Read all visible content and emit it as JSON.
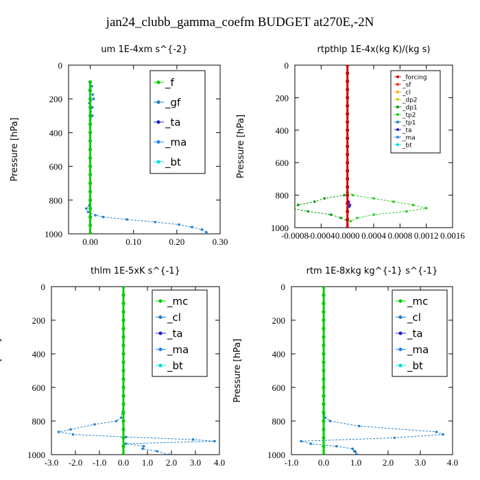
{
  "suptitle": "jan24_clubb_gamma_coefm  BUDGET at270E,-2N",
  "chart_data": [
    {
      "type": "line",
      "title": "um   1E-4xm s^{-2}",
      "ylabel": "Pressure [hPa]",
      "xlim": [
        -0.05,
        0.3
      ],
      "ylim": [
        1000,
        0
      ],
      "xticks": [
        "0.00",
        "0.10",
        "0.20",
        "0.30"
      ],
      "xtick_values": [
        0.0,
        0.1,
        0.2,
        0.3
      ],
      "yticks": [
        "0",
        "200",
        "400",
        "600",
        "800",
        "1000"
      ],
      "ytick_values": [
        0,
        200,
        400,
        600,
        800,
        1000
      ],
      "legend_font": 15,
      "legend_position": "top-right",
      "series": [
        {
          "name": "_f",
          "color": "#00cc00",
          "y": [
            100,
            150,
            200,
            250,
            300,
            350,
            400,
            450,
            500,
            550,
            600,
            650,
            700,
            750,
            800,
            850,
            900,
            950,
            1000
          ],
          "x": [
            0,
            0,
            0,
            0,
            0,
            0,
            0,
            0,
            0,
            0,
            0,
            0,
            0,
            0,
            0,
            0,
            0,
            0,
            0
          ]
        },
        {
          "name": "_gf",
          "color": "#1e7fcc",
          "y": [
            100,
            125,
            150,
            175,
            200,
            225,
            250,
            275,
            300,
            325,
            350,
            400,
            450,
            500,
            550,
            600,
            650,
            700,
            750,
            800,
            830,
            850,
            870,
            890,
            900,
            915,
            930,
            945,
            960,
            975,
            990,
            1000
          ],
          "x": [
            0,
            0.004,
            -0.002,
            0.006,
            0.008,
            -0.002,
            0.005,
            0.001,
            0.005,
            0,
            0,
            0,
            0,
            0,
            0,
            0,
            0,
            0,
            0,
            0,
            -0.002,
            -0.009,
            -0.005,
            0.012,
            0.03,
            0.085,
            0.15,
            0.205,
            0.235,
            0.258,
            0.268,
            0.27
          ]
        },
        {
          "name": "_ta",
          "color": "#2020cc",
          "y": [
            100,
            200,
            300,
            400,
            500,
            600,
            700,
            800,
            900,
            1000
          ],
          "x": [
            0,
            0,
            0,
            0,
            0,
            0,
            0,
            0,
            0,
            0
          ]
        },
        {
          "name": "_ma",
          "color": "#2288ee",
          "y": [
            100,
            200,
            300,
            400,
            500,
            600,
            700,
            800,
            900,
            1000
          ],
          "x": [
            0,
            0,
            0,
            0,
            0,
            0,
            0,
            0,
            0,
            0
          ]
        },
        {
          "name": "_bt",
          "color": "#00dddd",
          "y": [
            100,
            200,
            300,
            400,
            500,
            600,
            700,
            800,
            900,
            1000
          ],
          "x": [
            0,
            0,
            0,
            0,
            0,
            0,
            0,
            0,
            0,
            0
          ]
        }
      ]
    },
    {
      "type": "line",
      "title": "rtpthlp   1E-4x(kg K)/(kg s)",
      "ylabel": "Pressure [hPa]",
      "xlim": [
        -0.0008,
        0.0016
      ],
      "ylim": [
        1000,
        0
      ],
      "xticks": [
        "-0.0008",
        "-0.0004",
        "0.0000",
        "0.0004",
        "0.0008",
        "0.0012",
        "0.0016"
      ],
      "xtick_values": [
        -0.0008,
        -0.0004,
        0.0,
        0.0004,
        0.0008,
        0.0012,
        0.0016
      ],
      "yticks": [
        "0",
        "200",
        "400",
        "600",
        "800",
        "1000"
      ],
      "ytick_values": [
        0,
        200,
        400,
        600,
        800,
        1000
      ],
      "legend_font": 9,
      "legend_position": "top-right",
      "series": [
        {
          "name": "_forcing",
          "color": "#cc0000",
          "y": [
            0,
            50,
            100,
            150,
            200,
            250,
            300,
            350,
            400,
            450,
            500,
            550,
            600,
            650,
            700,
            750,
            800,
            850,
            900,
            950,
            1000
          ],
          "x": [
            0,
            0,
            0,
            0,
            0,
            0,
            0,
            0,
            0,
            0,
            0,
            0,
            0,
            0,
            0,
            0,
            0,
            0,
            0,
            0,
            0
          ]
        },
        {
          "name": "_sf",
          "color": "#ff2200",
          "y": [
            0,
            100,
            200,
            300,
            400,
            500,
            600,
            700,
            800,
            900,
            1000
          ],
          "x": [
            0,
            0,
            0,
            0,
            0,
            0,
            0,
            0,
            0,
            0,
            0
          ]
        },
        {
          "name": "_cl",
          "color": "#ffaa00",
          "y": [
            0,
            200,
            400,
            600,
            800,
            1000
          ],
          "x": [
            0,
            0,
            0,
            0,
            0,
            0
          ]
        },
        {
          "name": "_dp2",
          "color": "#cccc00",
          "y": [
            0,
            200,
            400,
            600,
            800,
            1000
          ],
          "x": [
            0,
            0,
            0,
            0,
            0,
            0
          ]
        },
        {
          "name": "_dp1",
          "color": "#009900",
          "y": [
            780,
            800,
            820,
            840,
            860,
            880,
            900,
            920,
            940,
            960,
            980,
            1000
          ],
          "x": [
            0,
            -5e-05,
            -0.00035,
            -0.0005,
            -0.00075,
            -0.00085,
            -0.0006,
            -0.00025,
            -0.0001,
            0,
            0,
            0
          ]
        },
        {
          "name": "_tp2",
          "color": "#22cc22",
          "y": [
            780,
            800,
            820,
            840,
            860,
            880,
            900,
            920,
            940,
            960,
            980,
            1000
          ],
          "x": [
            0,
            8e-05,
            0.0004,
            0.0007,
            0.001,
            0.0012,
            0.0009,
            0.0004,
            0.00015,
            5e-05,
            0,
            0
          ]
        },
        {
          "name": "_tp1",
          "color": "#1e7fcc",
          "y": [
            0,
            200,
            400,
            600,
            800,
            1000
          ],
          "x": [
            0,
            0,
            0,
            0,
            0,
            0
          ]
        },
        {
          "name": "_ta",
          "color": "#2020cc",
          "y": [
            840,
            860,
            870,
            880
          ],
          "x": [
            2e-05,
            4e-05,
            3e-05,
            0
          ]
        },
        {
          "name": "_ma",
          "color": "#2288ee",
          "y": [
            0,
            200,
            400,
            600,
            800,
            1000
          ],
          "x": [
            0,
            0,
            0,
            0,
            0,
            0
          ]
        },
        {
          "name": "_bt",
          "color": "#00dddd",
          "y": [
            0,
            200,
            400,
            600,
            800,
            1000
          ],
          "x": [
            0,
            0,
            0,
            0,
            0,
            0
          ]
        }
      ]
    },
    {
      "type": "line",
      "title": "thlm   1E-5xK s^{-1}",
      "ylabel": "Pressure [hPa]",
      "xlim": [
        -3.0,
        4.0
      ],
      "ylim": [
        1000,
        0
      ],
      "xticks": [
        "-3.0",
        "-2.0",
        "-1.0",
        "0.0",
        "1.0",
        "2.0",
        "3.0",
        "4.0"
      ],
      "xtick_values": [
        -3,
        -2,
        -1,
        0,
        1,
        2,
        3,
        4
      ],
      "yticks": [
        "0",
        "200",
        "400",
        "600",
        "800",
        "1000"
      ],
      "ytick_values": [
        0,
        200,
        400,
        600,
        800,
        1000
      ],
      "legend_font": 15,
      "legend_position": "top-right",
      "series": [
        {
          "name": "_mc",
          "color": "#00cc00",
          "y": [
            0,
            50,
            100,
            150,
            200,
            250,
            300,
            350,
            400,
            450,
            500,
            550,
            600,
            650,
            700,
            750,
            800,
            850,
            900,
            950,
            1000
          ],
          "x": [
            0,
            0,
            0,
            0,
            0,
            0,
            0,
            0,
            0,
            0,
            0,
            0,
            0,
            0,
            0,
            0,
            0,
            0,
            0,
            0,
            0
          ]
        },
        {
          "name": "_cl",
          "color": "#1e7fcc",
          "y": [
            0,
            100,
            200,
            300,
            400,
            500,
            600,
            700,
            780,
            800,
            820,
            850,
            865,
            880,
            895,
            910,
            920,
            935,
            950,
            965,
            980,
            1000
          ],
          "x": [
            0,
            0,
            0,
            0,
            0,
            0,
            0,
            0,
            -0.1,
            -0.3,
            -1.2,
            -2.2,
            -2.7,
            -2.1,
            0.1,
            2.9,
            3.8,
            0.1,
            0.85,
            0.8,
            1.4,
            1.9
          ]
        },
        {
          "name": "_ta",
          "color": "#2020cc",
          "y": [
            0,
            500,
            1000
          ],
          "x": [
            0,
            0,
            0
          ]
        },
        {
          "name": "_ma",
          "color": "#2288ee",
          "y": [
            0,
            500,
            1000
          ],
          "x": [
            0,
            0,
            0
          ]
        },
        {
          "name": "_bt",
          "color": "#00dddd",
          "y": [
            0,
            500,
            1000
          ],
          "x": [
            0,
            0,
            0
          ]
        }
      ]
    },
    {
      "type": "line",
      "title": "rtm   1E-8xkg kg^{-1} s^{-1}",
      "ylabel": "Pressure [hPa]",
      "xlim": [
        -1.0,
        4.0
      ],
      "ylim": [
        1000,
        0
      ],
      "xticks": [
        "-1.0",
        "0.0",
        "1.0",
        "2.0",
        "3.0",
        "4.0"
      ],
      "xtick_values": [
        -1,
        0,
        1,
        2,
        3,
        4
      ],
      "yticks": [
        "0",
        "200",
        "400",
        "600",
        "800",
        "1000"
      ],
      "ytick_values": [
        0,
        200,
        400,
        600,
        800,
        1000
      ],
      "legend_font": 15,
      "legend_position": "top-right",
      "series": [
        {
          "name": "_mc",
          "color": "#00cc00",
          "y": [
            0,
            50,
            100,
            150,
            200,
            250,
            300,
            350,
            400,
            450,
            500,
            550,
            600,
            650,
            700,
            750,
            800,
            850,
            900,
            950,
            1000
          ],
          "x": [
            0,
            0,
            0,
            0,
            0,
            0,
            0,
            0,
            0,
            0,
            0,
            0,
            0,
            0,
            0,
            0,
            0,
            0,
            0,
            0,
            0
          ]
        },
        {
          "name": "_cl",
          "color": "#1e7fcc",
          "y": [
            0,
            100,
            200,
            300,
            400,
            500,
            600,
            700,
            780,
            800,
            830,
            865,
            880,
            900,
            920,
            935,
            950,
            965,
            980,
            1000
          ],
          "x": [
            0,
            0,
            0,
            0,
            0,
            0,
            0,
            0,
            0.05,
            0.2,
            1.1,
            3.5,
            3.7,
            2.2,
            -0.7,
            -0.4,
            0.4,
            0.9,
            0.95,
            1.05
          ]
        },
        {
          "name": "_ta",
          "color": "#2020cc",
          "y": [
            0,
            500,
            1000
          ],
          "x": [
            0,
            0,
            0
          ]
        },
        {
          "name": "_ma",
          "color": "#2288ee",
          "y": [
            0,
            500,
            1000
          ],
          "x": [
            0,
            0,
            0
          ]
        },
        {
          "name": "_bt",
          "color": "#00dddd",
          "y": [
            0,
            500,
            1000
          ],
          "x": [
            0,
            0,
            0
          ]
        }
      ]
    }
  ]
}
